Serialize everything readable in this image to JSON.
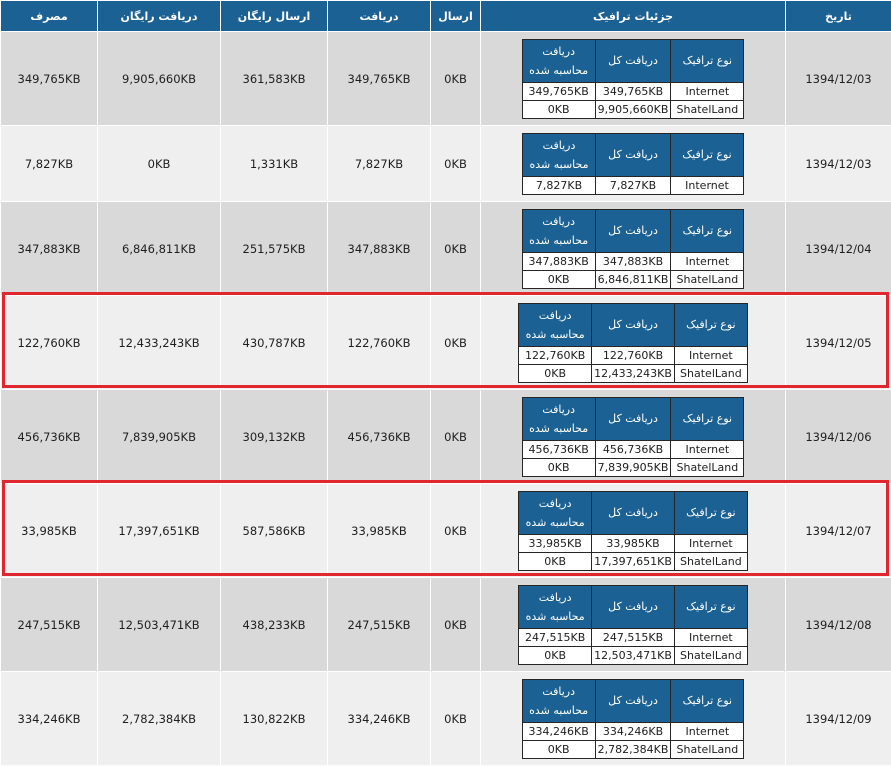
{
  "headers": {
    "date": "تاریخ",
    "details": "جزئیات ترافیک",
    "send": "ارسال",
    "receive": "دریافت",
    "free_send": "ارسال رایگان",
    "free_receive": "دریافت رایگان",
    "usage": "مصرف"
  },
  "inner_headers": {
    "type": "نوع ترافیک",
    "total": "دریافت کل",
    "charged": "دریافت محاسبه شده"
  },
  "highlight_color": "#e0262f",
  "rows": [
    {
      "date": "1394/12/03",
      "send": "0KB",
      "receive": "349,765KB",
      "free_send": "361,583KB",
      "free_receive": "9,905,660KB",
      "usage": "349,765KB",
      "details": [
        {
          "type": "Internet",
          "total": "349,765KB",
          "charged": "349,765KB"
        },
        {
          "type": "ShatelLand",
          "total": "9,905,660KB",
          "charged": "0KB"
        }
      ]
    },
    {
      "date": "1394/12/03",
      "send": "0KB",
      "receive": "7,827KB",
      "free_send": "1,331KB",
      "free_receive": "0KB",
      "usage": "7,827KB",
      "details": [
        {
          "type": "Internet",
          "total": "7,827KB",
          "charged": "7,827KB"
        }
      ]
    },
    {
      "date": "1394/12/04",
      "send": "0KB",
      "receive": "347,883KB",
      "free_send": "251,575KB",
      "free_receive": "6,846,811KB",
      "usage": "347,883KB",
      "details": [
        {
          "type": "Internet",
          "total": "347,883KB",
          "charged": "347,883KB"
        },
        {
          "type": "ShatelLand",
          "total": "6,846,811KB",
          "charged": "0KB"
        }
      ]
    },
    {
      "date": "1394/12/05",
      "send": "0KB",
      "receive": "122,760KB",
      "free_send": "430,787KB",
      "free_receive": "12,433,243KB",
      "usage": "122,760KB",
      "details": [
        {
          "type": "Internet",
          "total": "122,760KB",
          "charged": "122,760KB"
        },
        {
          "type": "ShatelLand",
          "total": "12,433,243KB",
          "charged": "0KB"
        }
      ]
    },
    {
      "date": "1394/12/06",
      "send": "0KB",
      "receive": "456,736KB",
      "free_send": "309,132KB",
      "free_receive": "7,839,905KB",
      "usage": "456,736KB",
      "details": [
        {
          "type": "Internet",
          "total": "456,736KB",
          "charged": "456,736KB"
        },
        {
          "type": "ShatelLand",
          "total": "7,839,905KB",
          "charged": "0KB"
        }
      ]
    },
    {
      "date": "1394/12/07",
      "send": "0KB",
      "receive": "33,985KB",
      "free_send": "587,586KB",
      "free_receive": "17,397,651KB",
      "usage": "33,985KB",
      "details": [
        {
          "type": "Internet",
          "total": "33,985KB",
          "charged": "33,985KB"
        },
        {
          "type": "ShatelLand",
          "total": "17,397,651KB",
          "charged": "0KB"
        }
      ]
    },
    {
      "date": "1394/12/08",
      "send": "0KB",
      "receive": "247,515KB",
      "free_send": "438,233KB",
      "free_receive": "12,503,471KB",
      "usage": "247,515KB",
      "details": [
        {
          "type": "Internet",
          "total": "247,515KB",
          "charged": "247,515KB"
        },
        {
          "type": "ShatelLand",
          "total": "12,503,471KB",
          "charged": "0KB"
        }
      ]
    },
    {
      "date": "1394/12/09",
      "send": "0KB",
      "receive": "334,246KB",
      "free_send": "130,822KB",
      "free_receive": "2,782,384KB",
      "usage": "334,246KB",
      "details": [
        {
          "type": "Internet",
          "total": "334,246KB",
          "charged": "334,246KB"
        },
        {
          "type": "ShatelLand",
          "total": "2,782,384KB",
          "charged": "0KB"
        }
      ]
    }
  ]
}
